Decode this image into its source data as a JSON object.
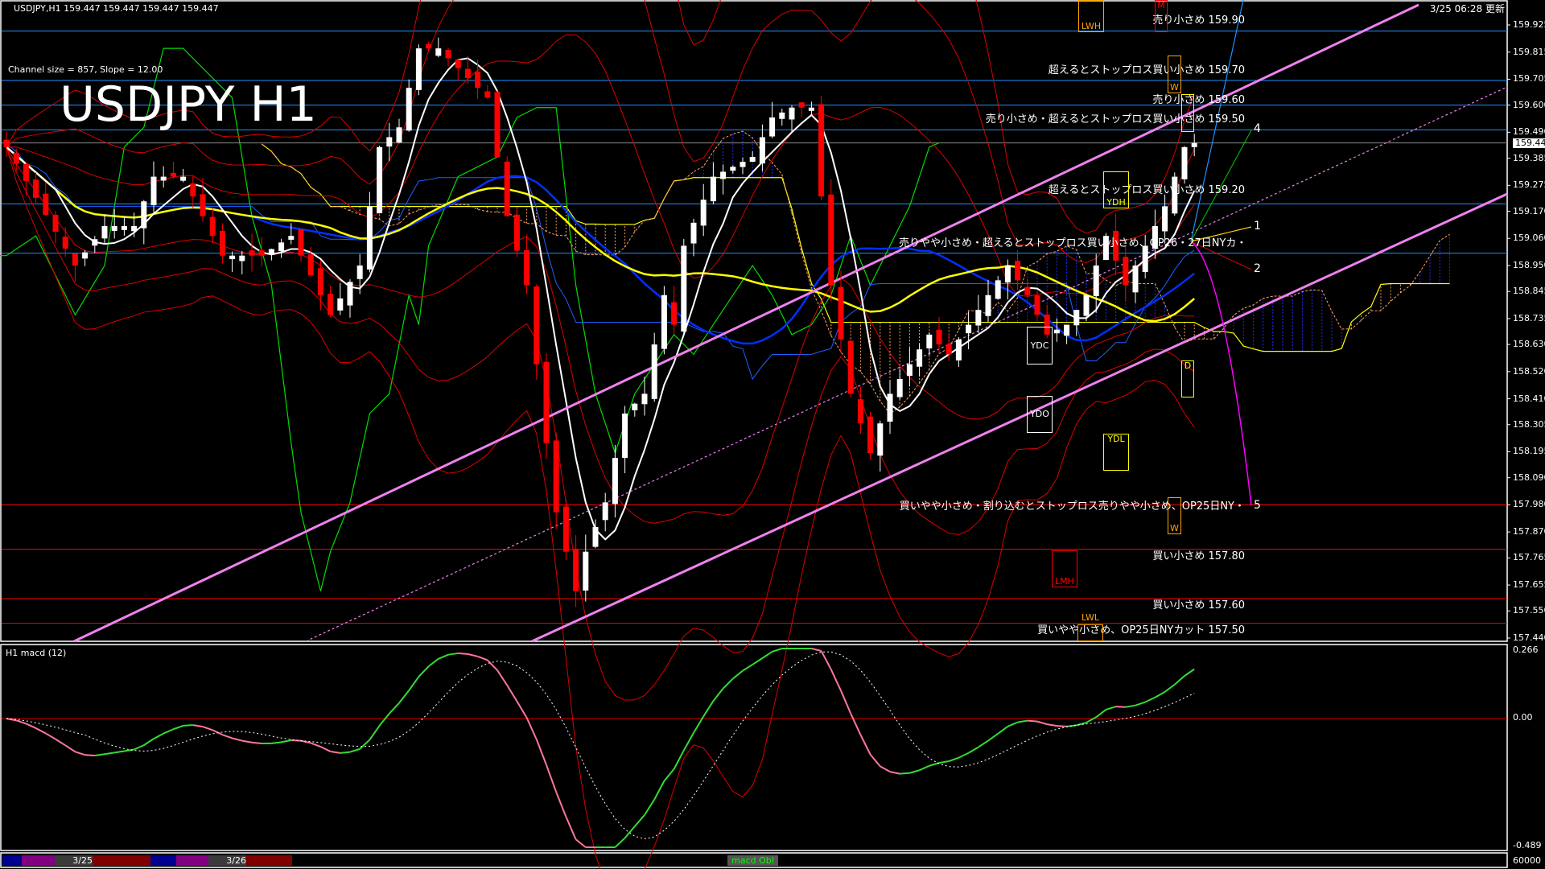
{
  "header": {
    "symbol_info": "USDJPY,H1  159.447 159.447 159.447 159.447",
    "channel_info": "Channel size = 857, Slope = 12.00",
    "big_title": "USDJPY H1",
    "updated": "3/25 06:28 更新"
  },
  "annotations": [
    {
      "text": "売り小さめ 159.90",
      "color": "#1e90ff"
    },
    {
      "text": "超えるとストップロス買い小さめ 159.70",
      "color": "#1e90ff"
    },
    {
      "text": "売り小さめ 159.60",
      "color": "#1e90ff"
    },
    {
      "text": "売り小さめ・超えるとストップロス買い小さめ 159.50",
      "color": "#1e90ff"
    },
    {
      "text": "超えるとストップロス買い小さめ 159.20",
      "color": "#1e90ff"
    },
    {
      "text": "売りやや小さめ・超えるとストップロス買い小さめ、OP26・27日NYカ・",
      "color": "#1e90ff"
    },
    {
      "text": "買いやや小さめ・割り込むとストップロス売りやや小さめ、OP25日NY・",
      "color": "#ff0000"
    },
    {
      "text": "買い小さめ 157.80",
      "color": "#ff0000"
    },
    {
      "text": "買い小さめ 157.60",
      "color": "#ff0000"
    },
    {
      "text": "買いやや小さめ、OP25日NYカット 157.50",
      "color": "#ff0000"
    }
  ],
  "markers": {
    "lwh": "LWH",
    "m": "M",
    "w1": "W",
    "ydh": "YDH",
    "ydc": "YDC",
    "ydo": "YDO",
    "ydl": "YDL",
    "d": "D",
    "w2": "W",
    "lmh": "LMH",
    "lwl": "LWL"
  },
  "projection_labels": [
    "4",
    "1",
    "2",
    "5"
  ],
  "price_axis": [
    "159.925",
    "159.815",
    "159.705",
    "159.600",
    "159.490",
    "159.385",
    "159.275",
    "159.170",
    "159.060",
    "158.950",
    "158.845",
    "158.735",
    "158.630",
    "158.520",
    "158.410",
    "158.305",
    "158.195",
    "158.090",
    "157.980",
    "157.870",
    "157.765",
    "157.655",
    "157.550",
    "157.440"
  ],
  "current_price": "159.447",
  "macd_panel": {
    "label": "H1  macd (12)",
    "max": "0.266",
    "zero": "0.00",
    "min": "-0.489"
  },
  "volume_axis": "60000",
  "bottom_bar": {
    "date1": "3/25",
    "date2": "3/26",
    "indicator_tab": "macd Obl"
  },
  "colors": {
    "support_line": "#ff0000",
    "resistance_line": "#1e90ff",
    "channel": "#ee82ee",
    "bull": "#ffffff",
    "bear": "#ff0000"
  },
  "chart_data": {
    "type": "candlestick",
    "title": "USDJPY H1",
    "ylim": [
      157.44,
      159.925
    ],
    "horizontal_levels": [
      159.9,
      159.7,
      159.6,
      159.5,
      159.2,
      159.0,
      157.98,
      157.8,
      157.6,
      157.5
    ],
    "close_keyframes": [
      [
        0,
        159.43
      ],
      [
        7,
        158.95
      ],
      [
        10,
        159.11
      ],
      [
        13,
        159.11
      ],
      [
        15,
        159.31
      ],
      [
        18,
        159.31
      ],
      [
        22,
        158.99
      ],
      [
        26,
        158.99
      ],
      [
        29,
        159.07
      ],
      [
        33,
        158.75
      ],
      [
        36,
        158.95
      ],
      [
        38,
        159.43
      ],
      [
        40,
        159.51
      ],
      [
        42,
        159.83
      ],
      [
        44,
        159.83
      ],
      [
        46,
        159.75
      ],
      [
        49,
        159.63
      ],
      [
        51,
        159.15
      ],
      [
        53,
        158.87
      ],
      [
        55,
        158.23
      ],
      [
        56,
        157.95
      ],
      [
        58,
        157.63
      ],
      [
        59,
        157.79
      ],
      [
        61,
        157.99
      ],
      [
        63,
        158.35
      ],
      [
        65,
        158.43
      ],
      [
        67,
        158.83
      ],
      [
        68,
        158.71
      ],
      [
        69,
        159.03
      ],
      [
        72,
        159.31
      ],
      [
        76,
        159.39
      ],
      [
        78,
        159.55
      ],
      [
        80,
        159.59
      ],
      [
        82,
        159.59
      ],
      [
        84,
        158.87
      ],
      [
        86,
        158.43
      ],
      [
        88,
        158.19
      ],
      [
        90,
        158.43
      ],
      [
        92,
        158.55
      ],
      [
        94,
        158.67
      ],
      [
        96,
        158.59
      ],
      [
        98,
        158.71
      ],
      [
        100,
        158.83
      ],
      [
        102,
        158.95
      ],
      [
        104,
        158.83
      ],
      [
        106,
        158.67
      ],
      [
        108,
        158.71
      ],
      [
        110,
        158.83
      ],
      [
        112,
        159.07
      ],
      [
        114,
        158.87
      ],
      [
        116,
        159.03
      ],
      [
        118,
        159.19
      ],
      [
        120,
        159.43
      ],
      [
        121,
        159.447
      ]
    ],
    "macd_range": [
      -0.489,
      0.266
    ]
  }
}
